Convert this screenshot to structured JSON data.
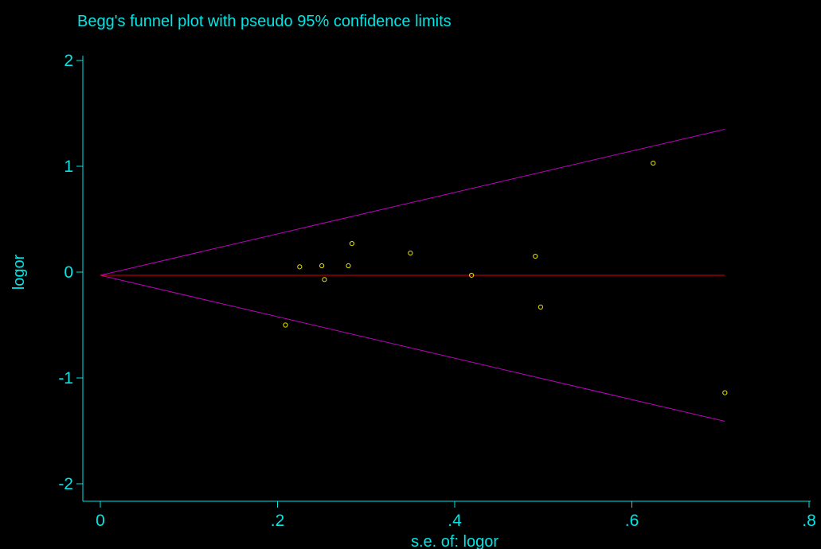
{
  "colors": {
    "background": "#000000",
    "axis": "#00e5e5",
    "text": "#00e5e5",
    "points": "#e5e500",
    "pooled_line": "#e50000",
    "confidence_limits": "#c000c0"
  },
  "chart_data": {
    "type": "scatter",
    "title": "Begg's funnel plot with pseudo 95% confidence limits",
    "xlabel": "s.e. of: logor",
    "ylabel": "logor",
    "xlim": [
      0,
      0.8
    ],
    "ylim": [
      -2,
      2
    ],
    "x_ticks": [
      {
        "value": 0,
        "label": "0"
      },
      {
        "value": 0.2,
        "label": ".2"
      },
      {
        "value": 0.4,
        "label": ".4"
      },
      {
        "value": 0.6,
        "label": ".6"
      },
      {
        "value": 0.8,
        "label": ".8"
      }
    ],
    "y_ticks": [
      {
        "value": 2,
        "label": "2"
      },
      {
        "value": 1,
        "label": "1"
      },
      {
        "value": 0,
        "label": "0"
      },
      {
        "value": -1,
        "label": "-1"
      },
      {
        "value": -2,
        "label": "-2"
      }
    ],
    "grid": false,
    "pooled_estimate": -0.03,
    "funnel_upper": [
      [
        0,
        -0.03
      ],
      [
        0.705,
        1.35
      ]
    ],
    "funnel_lower": [
      [
        0,
        -0.03
      ],
      [
        0.705,
        -1.41
      ]
    ],
    "points": [
      {
        "x": 0.209,
        "y": -0.5
      },
      {
        "x": 0.225,
        "y": 0.05
      },
      {
        "x": 0.25,
        "y": 0.06
      },
      {
        "x": 0.253,
        "y": -0.07
      },
      {
        "x": 0.28,
        "y": 0.06
      },
      {
        "x": 0.284,
        "y": 0.27
      },
      {
        "x": 0.35,
        "y": 0.18
      },
      {
        "x": 0.419,
        "y": -0.03
      },
      {
        "x": 0.491,
        "y": 0.15
      },
      {
        "x": 0.497,
        "y": -0.33
      },
      {
        "x": 0.624,
        "y": 1.03
      },
      {
        "x": 0.705,
        "y": -1.14
      }
    ]
  }
}
